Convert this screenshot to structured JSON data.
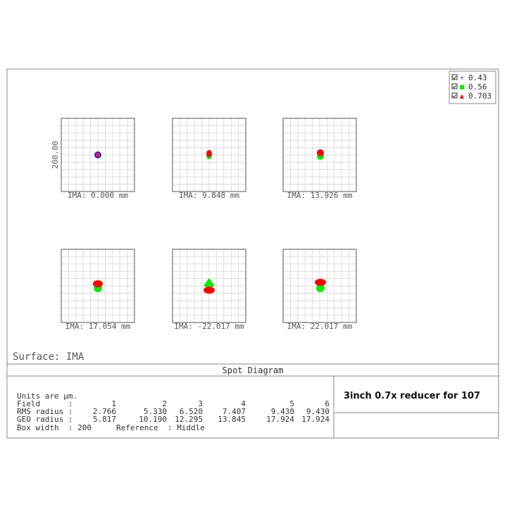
{
  "legend": [
    {
      "label": "0.43",
      "color": "#0000ff",
      "marker": "+"
    },
    {
      "label": "0.56",
      "color": "#00ee00",
      "marker": "■"
    },
    {
      "label": "0.703",
      "color": "#ff0000",
      "marker": "▲"
    }
  ],
  "panels": [
    {
      "label": "IMA: 0.000 mm",
      "scale": "200.00"
    },
    {
      "label": "IMA: 9.848 mm"
    },
    {
      "label": "IMA: 13.926 mm"
    },
    {
      "label": "IMA: 17.054 mm"
    },
    {
      "label": "IMA: -22.017 mm"
    },
    {
      "label": "IMA: 22.017 mm"
    }
  ],
  "surface": "Surface: IMA",
  "title": "Spot Diagram",
  "table": {
    "units": "Units are µm.",
    "rows": [
      {
        "label": "Field      :",
        "cells": [
          "1",
          "2",
          "3",
          "4",
          "5",
          "6"
        ]
      },
      {
        "label": "RMS radius :",
        "cells": [
          "2.766",
          "5.330",
          "6.520",
          "7.407",
          "9.430",
          "9.430"
        ]
      },
      {
        "label": "GEO radius :",
        "cells": [
          "5.817",
          "10.190",
          "12.295",
          "13.845",
          "17.924",
          "17.924"
        ]
      }
    ],
    "box_width": "Box width  : 200",
    "reference": "Reference  : Middle"
  },
  "description": "3inch 0.7x reducer for 107"
}
